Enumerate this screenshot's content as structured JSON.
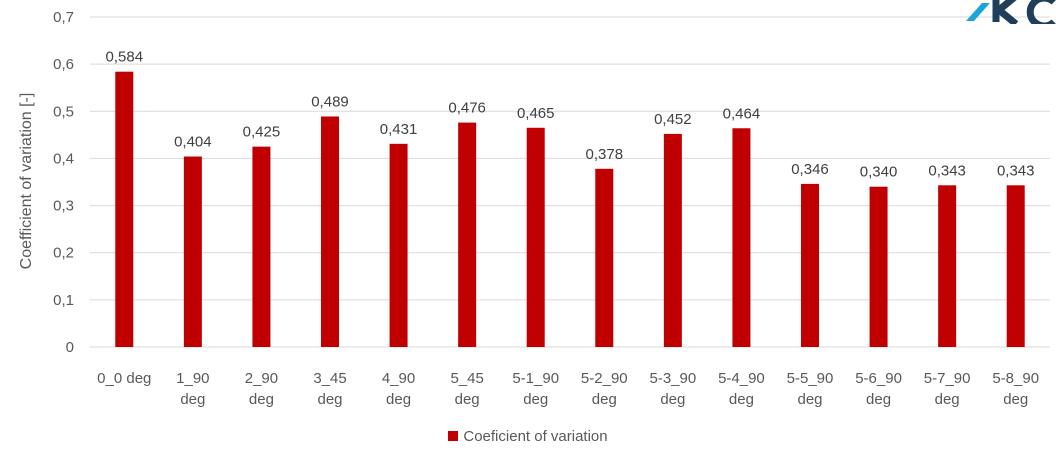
{
  "chart_data": {
    "type": "bar",
    "title": "",
    "xlabel": "",
    "ylabel": "Coefficient of variation [-]",
    "ylim": [
      0,
      0.7
    ],
    "yticks": [
      "0",
      "0,1",
      "0,2",
      "0,3",
      "0,4",
      "0,5",
      "0,6",
      "0,7"
    ],
    "categories": [
      [
        "0_0 deg"
      ],
      [
        "1_90",
        "deg"
      ],
      [
        "2_90",
        "deg"
      ],
      [
        "3_45",
        "deg"
      ],
      [
        "4_90",
        "deg"
      ],
      [
        "5_45",
        "deg"
      ],
      [
        "5-1_90",
        "deg"
      ],
      [
        "5-2_90",
        "deg"
      ],
      [
        "5-3_90",
        "deg"
      ],
      [
        "5-4_90",
        "deg"
      ],
      [
        "5-5_90",
        "deg"
      ],
      [
        "5-6_90",
        "deg"
      ],
      [
        "5-7_90",
        "deg"
      ],
      [
        "5-8_90",
        "deg"
      ]
    ],
    "series": [
      {
        "name": "Coeficient of variation",
        "color": "#C00000",
        "values": [
          0.584,
          0.404,
          0.425,
          0.489,
          0.431,
          0.476,
          0.465,
          0.378,
          0.452,
          0.464,
          0.346,
          0.34,
          0.343,
          0.343
        ],
        "labels": [
          "0,584",
          "0,404",
          "0,425",
          "0,489",
          "0,431",
          "0,476",
          "0,465",
          "0,378",
          "0,452",
          "0,464",
          "0,346",
          "0,340",
          "0,343",
          "0,343"
        ]
      }
    ],
    "grid": true,
    "legend": "bottom"
  },
  "colors": {
    "gridline": "#D9D9D9",
    "logo_accent": "#1BA6D9",
    "logo_dark": "#1F3E5A"
  }
}
